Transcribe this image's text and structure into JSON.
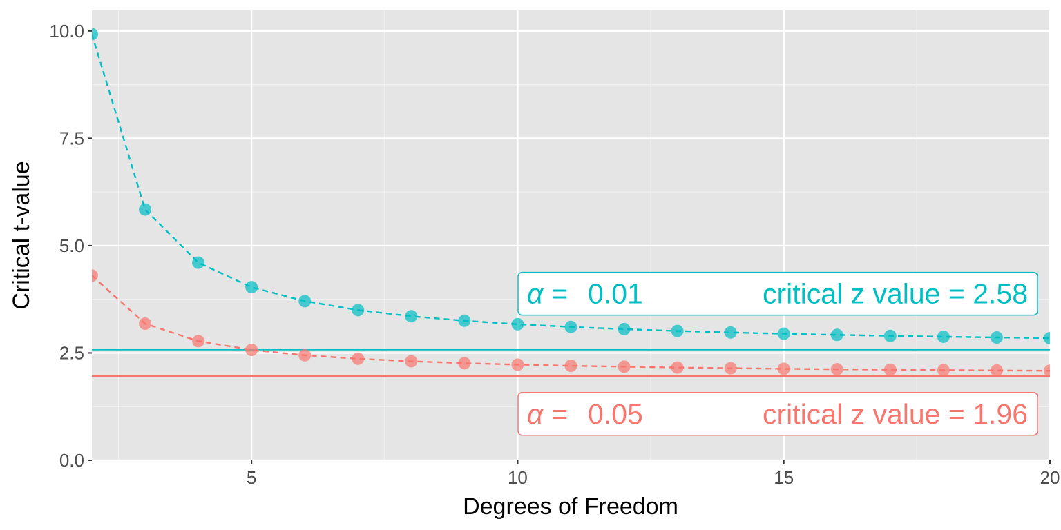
{
  "chart_data": {
    "type": "line",
    "title": "",
    "xlabel": "Degrees of Freedom",
    "ylabel": "Critical t-value",
    "xlim": [
      2,
      20
    ],
    "ylim": [
      0,
      10.48
    ],
    "x_ticks": [
      5,
      10,
      15,
      20
    ],
    "x_tick_labels": [
      "5",
      "10",
      "15",
      "20"
    ],
    "y_ticks": [
      0,
      2.5,
      5,
      7.5,
      10
    ],
    "y_tick_labels": [
      "0.0",
      "2.5",
      "5.0",
      "7.5",
      "10.0"
    ],
    "grid": true,
    "background": "#E5E5E5",
    "x": [
      2,
      3,
      4,
      5,
      6,
      7,
      8,
      9,
      10,
      11,
      12,
      13,
      14,
      15,
      16,
      17,
      18,
      19,
      20
    ],
    "series": [
      {
        "alpha": "0.01",
        "color": "#00BFC4",
        "values": [
          9.925,
          5.841,
          4.604,
          4.032,
          3.707,
          3.499,
          3.355,
          3.25,
          3.169,
          3.106,
          3.055,
          3.012,
          2.977,
          2.947,
          2.921,
          2.898,
          2.878,
          2.861,
          2.845
        ],
        "critical_z": 2.58,
        "label_alpha": "α =",
        "label_alpha_value": "0.01",
        "label_z": "critical z value =  2.58"
      },
      {
        "alpha": "0.05",
        "color": "#F8766D",
        "values": [
          4.303,
          3.182,
          2.776,
          2.571,
          2.447,
          2.365,
          2.306,
          2.262,
          2.228,
          2.201,
          2.179,
          2.16,
          2.145,
          2.131,
          2.12,
          2.11,
          2.101,
          2.093,
          2.086
        ],
        "critical_z": 1.96,
        "label_alpha": "α =",
        "label_alpha_value": "0.05",
        "label_z": "critical z value =  1.96"
      }
    ]
  }
}
